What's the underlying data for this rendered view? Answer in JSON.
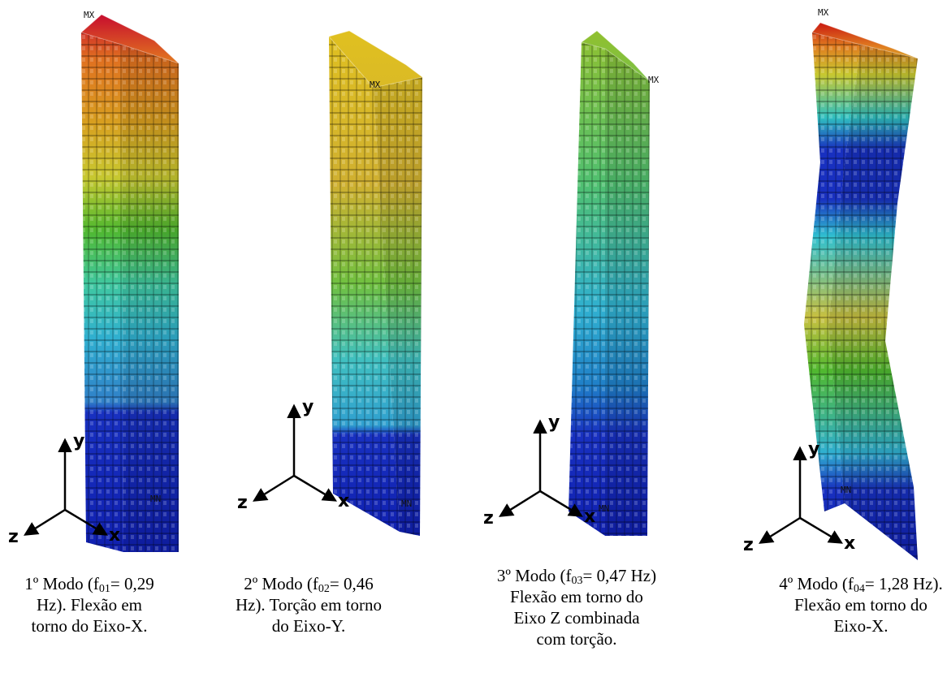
{
  "panels": [
    {
      "max_label": "MX",
      "min_label": "MN",
      "axes": {
        "x": "x",
        "y": "y",
        "z": "z"
      },
      "caption": {
        "before": "1º Modo (f",
        "sub": "01",
        "after": "= 0,29",
        "lines": [
          "Hz). Flexão em",
          "torno do Eixo-X."
        ]
      }
    },
    {
      "max_label": "MX",
      "min_label": "MN",
      "axes": {
        "x": "x",
        "y": "y",
        "z": "z"
      },
      "caption": {
        "before": "2º Modo (f",
        "sub": "02",
        "after": "= 0,46",
        "lines": [
          "Hz). Torção em torno",
          "do Eixo-Y."
        ]
      }
    },
    {
      "max_label": "MX",
      "min_label": "MN",
      "axes": {
        "x": "x",
        "y": "y",
        "z": "z"
      },
      "caption": {
        "before": "3º Modo (f",
        "sub": "03",
        "after": "= 0,47 Hz)",
        "lines": [
          "Flexão em torno do",
          "Eixo Z combinada",
          "com torção."
        ]
      }
    },
    {
      "max_label": "MX",
      "min_label": "MN",
      "axes": {
        "x": "x",
        "y": "y",
        "z": "z"
      },
      "caption": {
        "before": "4º Modo (f",
        "sub": "04",
        "after": "= 1,28 Hz).",
        "lines": [
          "Flexão em torno do",
          "Eixo-X."
        ]
      }
    }
  ]
}
